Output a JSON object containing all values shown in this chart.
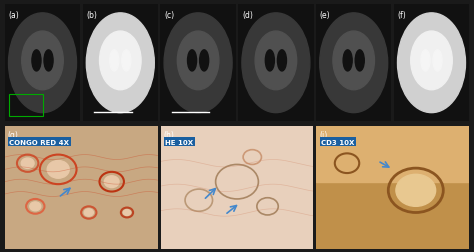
{
  "fig_width": 4.74,
  "fig_height": 2.53,
  "dpi": 100,
  "background_color": "#1a1a1a",
  "top_row_labels": [
    "(a)",
    "(b)",
    "(c)",
    "(d)",
    "(e)",
    "(f)"
  ],
  "bottom_row_labels": [
    "(g)",
    "(h)",
    "(i)"
  ],
  "stain_labels": [
    "CONGO RED 4X",
    "HE 10X",
    "CD3 10X"
  ],
  "stain_label_bg": "#1a5fa0",
  "stain_label_color": "#ffffff",
  "stain_label_fontsize": 5,
  "panel_label_color": "#ffffff",
  "panel_label_fontsize": 5.5,
  "top_bg": "#111111",
  "mri_colors": [
    [
      "#1a1a1a",
      "#2a2a2a",
      "#3a3030",
      "#1e1e1e",
      "#282828",
      "#3c3c3c"
    ],
    [
      "#ffffff",
      "#cccccc",
      "#bbbbbb",
      "#aaaaaa",
      "#999999",
      "#eeeeee"
    ]
  ],
  "mri_a_color": "#2a2a2a",
  "mri_b_color": "#444444",
  "mri_c_color": "#555555",
  "mri_d_color": "#333333",
  "mri_e_color": "#222222",
  "mri_f_color": "#888888",
  "congo_red_bg": "#d4a882",
  "he_bg": "#e8c9b0",
  "cd3_bg": "#c8a070",
  "bottom_panel_bg": "#0a0a0a",
  "green_box_color": "#00aa00",
  "scale_bar_color": "#ffffff"
}
